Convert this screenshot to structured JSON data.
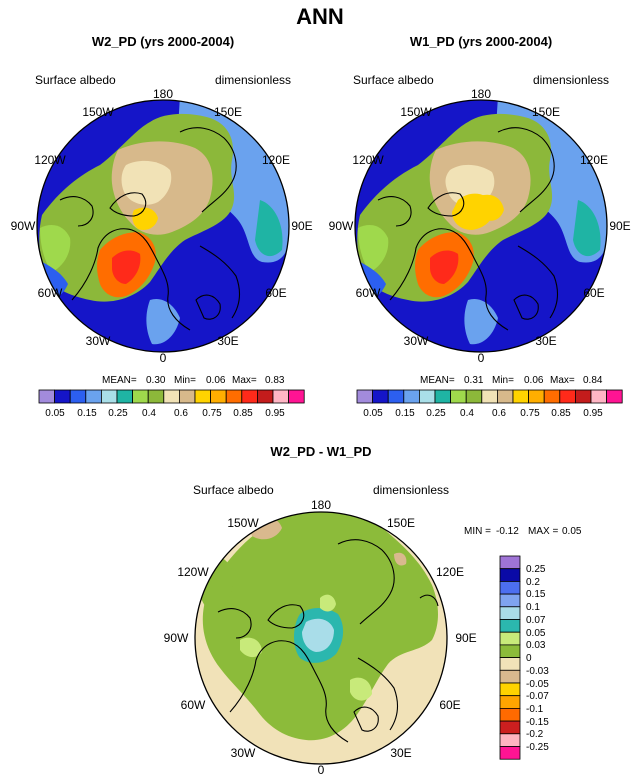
{
  "figure": {
    "title": "ANN"
  },
  "colors": {
    "abs_scale": [
      "#a28bdc",
      "#1515c8",
      "#2c5ff0",
      "#6aa2ee",
      "#a9dfe8",
      "#1fb4a4",
      "#9fd94c",
      "#8cb83a",
      "#f1e2b6",
      "#d7b98b",
      "#ffd300",
      "#ffae00",
      "#ff6d00",
      "#ff2a1a",
      "#c31c1c",
      "#ffb6c5",
      "#ff1493"
    ],
    "diff_scale": [
      "#9f74d6",
      "#0a0aa6",
      "#4c6ff0",
      "#7fa4f0",
      "#a9dde9",
      "#2bb7ae",
      "#c8ea7a",
      "#8cbb3a",
      "#f1e2b8",
      "#d9b98e",
      "#ffd300",
      "#ffa500",
      "#ff6a00",
      "#cc1f1f",
      "#ffb3c0",
      "#ff1493"
    ]
  },
  "chart_data": [
    {
      "type": "heatmap",
      "projection": "north-polar-stereographic",
      "title": "W2_PD (yrs 2000-2004)",
      "left_label": "Surface albedo",
      "right_label": "dimensionless",
      "lon_labels": [
        "180",
        "150E",
        "120E",
        "90E",
        "60E",
        "30E",
        "0",
        "30W",
        "60W",
        "90W",
        "120W",
        "150W"
      ],
      "stats": {
        "mean_label": "MEAN=",
        "mean": "0.30",
        "min_label": "Min=",
        "min": "0.06",
        "max_label": "Max=",
        "max": "0.83"
      },
      "colorbar_labels": [
        "0.05",
        "0.15",
        "0.25",
        "0.4",
        "0.6",
        "0.75",
        "0.85",
        "0.95"
      ]
    },
    {
      "type": "heatmap",
      "projection": "north-polar-stereographic",
      "title": "W1_PD (yrs 2000-2004)",
      "left_label": "Surface albedo",
      "right_label": "dimensionless",
      "lon_labels": [
        "180",
        "150E",
        "120E",
        "90E",
        "60E",
        "30E",
        "0",
        "30W",
        "60W",
        "90W",
        "120W",
        "150W"
      ],
      "stats": {
        "mean_label": "MEAN=",
        "mean": "0.31",
        "min_label": "Min=",
        "min": "0.06",
        "max_label": "Max=",
        "max": "0.84"
      },
      "colorbar_labels": [
        "0.05",
        "0.15",
        "0.25",
        "0.4",
        "0.6",
        "0.75",
        "0.85",
        "0.95"
      ]
    },
    {
      "type": "heatmap",
      "projection": "north-polar-stereographic",
      "title": "W2_PD - W1_PD",
      "left_label": "Surface albedo",
      "right_label": "dimensionless",
      "lon_labels": [
        "180",
        "150E",
        "120E",
        "90E",
        "60E",
        "30E",
        "0",
        "30W",
        "60W",
        "90W",
        "120W",
        "150W"
      ],
      "stats": {
        "min_label": "MIN =",
        "min": "-0.12",
        "max_label": "MAX =",
        "max": "0.05"
      },
      "colorbar_labels": [
        "0.25",
        "0.2",
        "0.15",
        "0.1",
        "0.07",
        "0.05",
        "0.03",
        "0",
        "-0.03",
        "-0.05",
        "-0.07",
        "-0.1",
        "-0.15",
        "-0.2",
        "-0.25"
      ]
    }
  ]
}
